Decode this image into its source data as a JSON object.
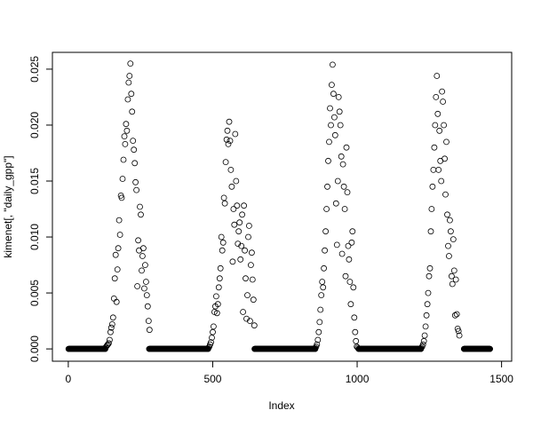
{
  "chart_data": {
    "type": "scatter",
    "title": "",
    "xlabel": "Index",
    "ylabel": "kimenet[, \"daily_gpp\"]",
    "xlim": [
      -55,
      1535
    ],
    "ylim": [
      -0.0011,
      0.0265
    ],
    "x_ticks": [
      0,
      500,
      1000,
      1500
    ],
    "x_tick_labels": [
      "0",
      "500",
      "1000",
      "1500"
    ],
    "y_ticks": [
      0,
      0.005,
      0.01,
      0.015,
      0.02,
      0.025
    ],
    "y_tick_labels": [
      "0.000",
      "0.005",
      "0.010",
      "0.015",
      "0.020",
      "0.025"
    ],
    "grid": false,
    "marker": "open-circle",
    "marker_color": "#000000",
    "zero_runs": [
      [
        1,
        128
      ],
      [
        280,
        484
      ],
      [
        645,
        855
      ],
      [
        1005,
        1221
      ],
      [
        1370,
        1460
      ]
    ],
    "segments": [
      {
        "index_from": 128,
        "index_step": 3,
        "values": [
          0.0001,
          0.0002,
          0.0003,
          0.0004,
          0.0005,
          0.0008,
          0.0015,
          0.0019,
          0.0022,
          0.0028,
          0.0045,
          0.0063,
          0.0084,
          0.0042,
          0.0071,
          0.009,
          0.0115,
          0.0102,
          0.0137,
          0.0135,
          0.0152,
          0.0169,
          0.019,
          0.0183,
          0.0201,
          0.0195,
          0.0223,
          0.0238,
          0.0244,
          0.0255,
          0.0228,
          0.0212,
          0.0186,
          0.0178,
          0.0166,
          0.0149,
          0.0142,
          0.0056,
          0.0097,
          0.0088,
          0.0127,
          0.012,
          0.007,
          0.0083,
          0.009,
          0.0054,
          0.0075,
          0.006,
          0.0048,
          0.0038,
          0.0025,
          0.0017
        ]
      },
      {
        "index_from": 485,
        "index_step": 3,
        "values": [
          0.0001,
          0.0002,
          0.0004,
          0.0006,
          0.001,
          0.0015,
          0.002,
          0.0033,
          0.0038,
          0.0047,
          0.0032,
          0.004,
          0.0055,
          0.0063,
          0.0072,
          0.01,
          0.0088,
          0.0095,
          0.0135,
          0.013,
          0.0167,
          0.0187,
          0.0195,
          0.0183,
          0.0203,
          0.0186,
          0.016,
          0.0145,
          0.0078,
          0.0125,
          0.0111,
          0.0192,
          0.015,
          0.0128,
          0.0094,
          0.0105,
          0.0113,
          0.008,
          0.0092,
          0.012,
          0.0033,
          0.0128,
          0.0088,
          0.0063,
          0.0027,
          0.0048,
          0.01,
          0.011,
          0.0025,
          0.0075,
          0.0086,
          0.0062,
          0.0044,
          0.0021
        ]
      },
      {
        "index_from": 855,
        "index_step": 3,
        "values": [
          0.0001,
          0.0002,
          0.0004,
          0.0008,
          0.0015,
          0.0024,
          0.0035,
          0.0048,
          0.006,
          0.0055,
          0.0072,
          0.0088,
          0.0105,
          0.0125,
          0.0145,
          0.0168,
          0.0185,
          0.0215,
          0.02,
          0.0236,
          0.0254,
          0.0228,
          0.0207,
          0.0191,
          0.013,
          0.0093,
          0.015,
          0.0225,
          0.0212,
          0.02,
          0.0172,
          0.0085,
          0.0165,
          0.0145,
          0.0125,
          0.0065,
          0.018,
          0.014,
          0.0092,
          0.008,
          0.006,
          0.004,
          0.0095,
          0.0105,
          0.0055,
          0.0028,
          0.0015,
          0.0007,
          0.0002,
          0.0001
        ]
      },
      {
        "index_from": 1222,
        "index_step": 3,
        "values": [
          0.0001,
          0.0002,
          0.0004,
          0.0007,
          0.0012,
          0.002,
          0.003,
          0.004,
          0.005,
          0.0065,
          0.0072,
          0.0105,
          0.0125,
          0.0145,
          0.016,
          0.018,
          0.02,
          0.0225,
          0.0244,
          0.021,
          0.016,
          0.0195,
          0.0168,
          0.015,
          0.023,
          0.0221,
          0.02,
          0.017,
          0.0138,
          0.0185,
          0.012,
          0.0092,
          0.0083,
          0.0115,
          0.0105,
          0.0065,
          0.0058,
          0.0098,
          0.007,
          0.003,
          0.0062,
          0.0031,
          0.0018,
          0.0016,
          0.0012
        ]
      }
    ]
  }
}
